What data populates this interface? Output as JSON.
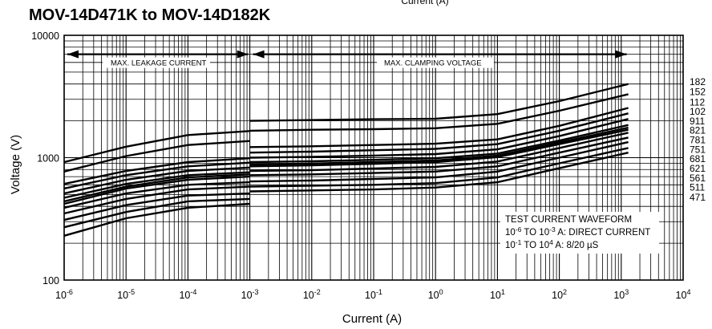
{
  "header": {
    "partial_top_label": "Current (A)",
    "title": "MOV-14D471K to MOV-14D182K"
  },
  "chart_data": {
    "type": "line",
    "title": "MOV-14D471K to MOV-14D182K",
    "xlabel": "Current (A)",
    "ylabel": "Voltage (V)",
    "x_scale": "log",
    "y_scale": "log",
    "xlim": [
      1e-06,
      10000
    ],
    "ylim": [
      100,
      10000
    ],
    "grid": true,
    "x_ticks": [
      {
        "value": 1e-06,
        "base": "10",
        "exp": "-6"
      },
      {
        "value": 1e-05,
        "base": "10",
        "exp": "-5"
      },
      {
        "value": 0.0001,
        "base": "10",
        "exp": "-4"
      },
      {
        "value": 0.001,
        "base": "10",
        "exp": "-3"
      },
      {
        "value": 0.01,
        "base": "10",
        "exp": "-2"
      },
      {
        "value": 0.1,
        "base": "10",
        "exp": "-1"
      },
      {
        "value": 1,
        "base": "10",
        "exp": "0"
      },
      {
        "value": 10,
        "base": "10",
        "exp": "1"
      },
      {
        "value": 100,
        "base": "10",
        "exp": "2"
      },
      {
        "value": 1000,
        "base": "10",
        "exp": "3"
      },
      {
        "value": 10000,
        "base": "10",
        "exp": "4"
      }
    ],
    "y_ticks": [
      {
        "value": 100,
        "label": "100"
      },
      {
        "value": 1000,
        "label": "1000"
      },
      {
        "value": 10000,
        "label": "10000"
      }
    ],
    "annotations": {
      "leakage_region": {
        "label": "MAX. LEAKAGE CURRENT",
        "x_from": 1e-06,
        "x_to": 0.001,
        "y": 7000
      },
      "clamping_region": {
        "label": "MAX. CLAMPING VOLTAGE",
        "x_from": 0.001,
        "x_to": 1300,
        "y": 7000
      },
      "test_note": {
        "line1": "TEST CURRENT WAVEFORM",
        "line2": {
          "a": "10",
          "a_exp": "-6",
          "b": " TO 10",
          "b_exp": "-3",
          "c": " A: DIRECT CURRENT"
        },
        "line3": {
          "a": "10",
          "a_exp": "-1",
          "b": " TO 10",
          "b_exp": "4",
          "c": " A: 8/20 µS"
        }
      }
    },
    "series": [
      {
        "name": "182",
        "leakage": [
          [
            1e-06,
            920
          ],
          [
            1e-05,
            1230
          ],
          [
            0.0001,
            1530
          ],
          [
            0.001,
            1650
          ]
        ],
        "clamping": [
          [
            0.001,
            2000
          ],
          [
            0.01,
            2030
          ],
          [
            0.1,
            2060
          ],
          [
            1,
            2080
          ],
          [
            10,
            2270
          ],
          [
            100,
            2900
          ],
          [
            1300,
            4000
          ]
        ]
      },
      {
        "name": "152",
        "leakage": [
          [
            1e-06,
            770
          ],
          [
            1e-05,
            1030
          ],
          [
            0.0001,
            1270
          ],
          [
            0.001,
            1370
          ]
        ],
        "clamping": [
          [
            0.001,
            1660
          ],
          [
            0.01,
            1690
          ],
          [
            0.1,
            1710
          ],
          [
            1,
            1740
          ],
          [
            10,
            1890
          ],
          [
            100,
            2420
          ],
          [
            1300,
            3300
          ]
        ]
      },
      {
        "name": "112",
        "leakage": [
          [
            1e-06,
            610
          ],
          [
            1e-05,
            780
          ],
          [
            0.0001,
            920
          ],
          [
            0.001,
            990
          ]
        ],
        "clamping": [
          [
            0.001,
            1220
          ],
          [
            0.01,
            1240
          ],
          [
            0.1,
            1270
          ],
          [
            1,
            1300
          ],
          [
            10,
            1410
          ],
          [
            100,
            1820
          ],
          [
            1300,
            2550
          ]
        ]
      },
      {
        "name": "102",
        "leakage": [
          [
            1e-06,
            560
          ],
          [
            1e-05,
            720
          ],
          [
            0.0001,
            850
          ],
          [
            0.001,
            910
          ]
        ],
        "clamping": [
          [
            0.001,
            1100
          ],
          [
            0.01,
            1120
          ],
          [
            0.1,
            1150
          ],
          [
            1,
            1180
          ],
          [
            10,
            1290
          ],
          [
            100,
            1660
          ],
          [
            1300,
            2300
          ]
        ]
      },
      {
        "name": "911",
        "leakage": [
          [
            1e-06,
            510
          ],
          [
            1e-05,
            660
          ],
          [
            0.0001,
            780
          ],
          [
            0.001,
            830
          ]
        ],
        "clamping": [
          [
            0.001,
            1000
          ],
          [
            0.01,
            1015
          ],
          [
            0.1,
            1040
          ],
          [
            1,
            1070
          ],
          [
            10,
            1170
          ],
          [
            100,
            1500
          ],
          [
            1300,
            2070
          ]
        ]
      },
      {
        "name": "821",
        "leakage": [
          [
            1e-06,
            470
          ],
          [
            1e-05,
            610
          ],
          [
            0.0001,
            720
          ],
          [
            0.001,
            760
          ]
        ],
        "clamping": [
          [
            0.001,
            920
          ],
          [
            0.01,
            935
          ],
          [
            0.1,
            960
          ],
          [
            1,
            990
          ],
          [
            10,
            1080
          ],
          [
            100,
            1380
          ],
          [
            1300,
            1850
          ]
        ]
      },
      {
        "name": "781",
        "leakage": [
          [
            1e-06,
            440
          ],
          [
            1e-05,
            580
          ],
          [
            0.0001,
            690
          ],
          [
            0.001,
            730
          ]
        ],
        "clamping": [
          [
            0.001,
            880
          ],
          [
            0.01,
            895
          ],
          [
            0.1,
            920
          ],
          [
            1,
            950
          ],
          [
            10,
            1040
          ],
          [
            100,
            1330
          ],
          [
            1300,
            1760
          ]
        ]
      },
      {
        "name": "751",
        "leakage": [
          [
            1e-06,
            420
          ],
          [
            1e-05,
            560
          ],
          [
            0.0001,
            660
          ],
          [
            0.001,
            700
          ]
        ],
        "clamping": [
          [
            0.001,
            850
          ],
          [
            0.01,
            865
          ],
          [
            0.1,
            890
          ],
          [
            1,
            920
          ],
          [
            10,
            1010
          ],
          [
            100,
            1290
          ],
          [
            1300,
            1690
          ]
        ]
      },
      {
        "name": "681",
        "leakage": [
          [
            1e-06,
            390
          ],
          [
            1e-05,
            510
          ],
          [
            0.0001,
            600
          ],
          [
            0.001,
            630
          ]
        ],
        "clamping": [
          [
            0.001,
            780
          ],
          [
            0.01,
            790
          ],
          [
            0.1,
            815
          ],
          [
            1,
            840
          ],
          [
            10,
            930
          ],
          [
            100,
            1200
          ],
          [
            1300,
            1600
          ]
        ]
      },
      {
        "name": "621",
        "leakage": [
          [
            1e-06,
            350
          ],
          [
            1e-05,
            460
          ],
          [
            0.0001,
            550
          ],
          [
            0.001,
            580
          ]
        ],
        "clamping": [
          [
            0.001,
            720
          ],
          [
            0.01,
            730
          ],
          [
            0.1,
            750
          ],
          [
            1,
            770
          ],
          [
            10,
            850
          ],
          [
            100,
            1100
          ],
          [
            1300,
            1460
          ]
        ]
      },
      {
        "name": "561",
        "leakage": [
          [
            1e-06,
            310
          ],
          [
            1e-05,
            410
          ],
          [
            0.0001,
            490
          ],
          [
            0.001,
            510
          ]
        ],
        "clamping": [
          [
            0.001,
            640
          ],
          [
            0.01,
            650
          ],
          [
            0.1,
            670
          ],
          [
            1,
            690
          ],
          [
            10,
            770
          ],
          [
            100,
            1000
          ],
          [
            1300,
            1340
          ]
        ]
      },
      {
        "name": "511",
        "leakage": [
          [
            1e-06,
            270
          ],
          [
            1e-05,
            360
          ],
          [
            0.0001,
            440
          ],
          [
            0.001,
            460
          ]
        ],
        "clamping": [
          [
            0.001,
            580
          ],
          [
            0.01,
            590
          ],
          [
            0.1,
            600
          ],
          [
            1,
            620
          ],
          [
            10,
            690
          ],
          [
            100,
            900
          ],
          [
            1300,
            1200
          ]
        ]
      },
      {
        "name": "471",
        "leakage": [
          [
            1e-06,
            230
          ],
          [
            1e-05,
            320
          ],
          [
            0.0001,
            390
          ],
          [
            0.001,
            420
          ]
        ],
        "clamping": [
          [
            0.001,
            530
          ],
          [
            0.01,
            540
          ],
          [
            0.1,
            550
          ],
          [
            1,
            570
          ],
          [
            10,
            630
          ],
          [
            100,
            820
          ],
          [
            1300,
            1100
          ]
        ]
      }
    ],
    "label_values": [
      4150,
      3450,
      2840,
      2380,
      1995,
      1670,
      1395,
      1165,
      975,
      815,
      680,
      570,
      475
    ]
  }
}
